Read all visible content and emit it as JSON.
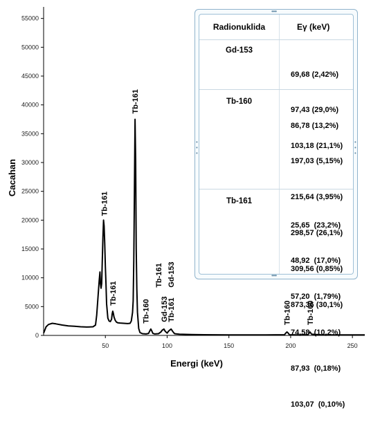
{
  "chart_data": {
    "type": "line",
    "xlabel": "Energi (keV)",
    "ylabel": "Cacahan",
    "xlim": [
      0,
      260
    ],
    "ylim": [
      0,
      57000
    ],
    "x_ticks": [
      50,
      100,
      150,
      200,
      250
    ],
    "y_ticks": [
      0,
      5000,
      10000,
      15000,
      20000,
      25000,
      30000,
      35000,
      40000,
      45000,
      50000,
      55000
    ],
    "series": [
      {
        "x": [
          0,
          2,
          4,
          7,
          10,
          15,
          20,
          25,
          30,
          35,
          40,
          42,
          43,
          44,
          45,
          45.6,
          46,
          46.5,
          47,
          47.5,
          48,
          48.5,
          49,
          49.5,
          50,
          50.5,
          51,
          52,
          53,
          54,
          55,
          55.5,
          56,
          56.5,
          57,
          58,
          59,
          60,
          62,
          65,
          68,
          70,
          71,
          72,
          72.5,
          73,
          73.5,
          74,
          74.5,
          75,
          75.5,
          76,
          77,
          78,
          80,
          83,
          85,
          86,
          86.8,
          87.5,
          88.5,
          90,
          93,
          95,
          96,
          97.4,
          98.5,
          100,
          101,
          102,
          103.2,
          104.5,
          106,
          110,
          120,
          130,
          150,
          180,
          195,
          196,
          197,
          198,
          199,
          205,
          214,
          215.6,
          217,
          225,
          240,
          260
        ],
        "y": [
          400,
          1500,
          1900,
          2100,
          2000,
          1800,
          1650,
          1600,
          1500,
          1450,
          1500,
          1800,
          3500,
          6500,
          9500,
          11000,
          9000,
          8200,
          9000,
          13000,
          17000,
          20000,
          19000,
          16000,
          12000,
          9000,
          5500,
          3000,
          2500,
          2400,
          2800,
          3700,
          4200,
          3800,
          3200,
          2600,
          2300,
          2200,
          2150,
          2100,
          2050,
          2100,
          2500,
          4000,
          6000,
          13000,
          25000,
          37500,
          30000,
          15000,
          8000,
          4000,
          1200,
          500,
          300,
          250,
          350,
          800,
          1100,
          800,
          350,
          250,
          300,
          600,
          900,
          1100,
          700,
          400,
          700,
          900,
          1100,
          700,
          300,
          200,
          150,
          120,
          100,
          100,
          120,
          400,
          600,
          400,
          120,
          100,
          120,
          600,
          200,
          100,
          90,
          80
        ]
      }
    ],
    "peak_labels": [
      {
        "text": "Tb-161",
        "x": 49,
        "y": 20000
      },
      {
        "text": "Tb-161",
        "x": 56,
        "y": 4200
      },
      {
        "text": "Tb-161",
        "x": 74,
        "y": 37500
      },
      {
        "text": "Tb-160",
        "x": 87,
        "y": 1100
      },
      {
        "text": "Tb-161",
        "x": 87.9,
        "y": 1100
      },
      {
        "text": "Gd-153",
        "x": 97.4,
        "y": 1100
      },
      {
        "text": "Tb-161",
        "x": 103.1,
        "y": 1100
      },
      {
        "text": "Gd-153",
        "x": 103.2,
        "y": 1100
      },
      {
        "text": "Tb-160",
        "x": 197,
        "y": 600
      },
      {
        "text": "Tb-160",
        "x": 215.6,
        "y": 600
      }
    ],
    "line_color": "#000000",
    "grid": false
  },
  "table": {
    "headers": [
      "Radionuklida",
      "Eγ (keV)"
    ],
    "rows": [
      {
        "nuclide": "Gd-153",
        "energies": [
          "69,68 (2,42%)",
          "97,43 (29,0%)",
          "103,18 (21,1%)"
        ]
      },
      {
        "nuclide": "Tb-160",
        "energies": [
          "86,78 (13,2%)",
          "197,03 (5,15%)",
          "215,64 (3,95%)",
          "298,57 (26,1%)",
          "309,56 (0,85%)",
          "873,36 (30,1%)"
        ]
      },
      {
        "nuclide": "Tb-161",
        "energies": [
          "25,65  (23,2%)",
          "48,92  (17,0%)",
          "57,20  (1,79%)",
          "74,58  (10,2%)",
          "87,93  (0,18%)",
          "103,07  (0,10%)"
        ]
      }
    ]
  }
}
